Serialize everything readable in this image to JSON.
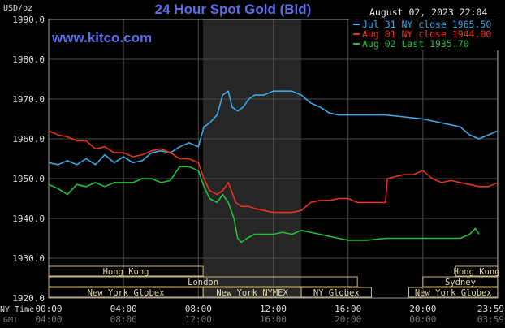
{
  "header": {
    "title": "24 Hour Spot Gold (Bid)",
    "unit": "USD/oz",
    "timestamp": "August 02, 2023 22:04",
    "watermark": "www.kitco.com"
  },
  "legend": [
    {
      "label": "Jul 31 NY close 1965.50",
      "color": "#3aa8e8"
    },
    {
      "label": "Aug 01 NY close 1944.00",
      "color": "#e8321e"
    },
    {
      "label": "Aug 02 Last 1935.70",
      "color": "#22c03a"
    }
  ],
  "axis_labels": {
    "ny_time": "NY Time",
    "gmt": "GMT"
  },
  "sessions": [
    {
      "label": "Hong Kong",
      "row": 0,
      "start": 0,
      "end": 8.25
    },
    {
      "label": "Hong Kong",
      "row": 0,
      "start": 21.75,
      "end": 24
    },
    {
      "label": "London",
      "row": 1,
      "start": 0,
      "end": 16.5
    },
    {
      "label": "Sydney",
      "row": 1,
      "start": 20,
      "end": 24
    },
    {
      "label": "New York Globex",
      "row": 2,
      "start": 0,
      "end": 8.25
    },
    {
      "label": "New York NYMEX",
      "row": 2,
      "start": 8.25,
      "end": 13.5
    },
    {
      "label": "NY Globex",
      "row": 2,
      "start": 13.5,
      "end": 17.25
    },
    {
      "label": "New York Globex",
      "row": 2,
      "start": 19.25,
      "end": 24
    }
  ],
  "chart_data": {
    "type": "line",
    "title": "24 Hour Spot Gold (Bid)",
    "ylabel": "USD/oz",
    "ylim": [
      1920,
      1990
    ],
    "yticks": [
      1920,
      1930,
      1940,
      1950,
      1960,
      1970,
      1980,
      1990
    ],
    "ytick_labels": [
      "1920.0",
      "1930.0",
      "1940.0",
      "1950.0",
      "1960.0",
      "1970.0",
      "1980.0",
      "1990.0"
    ],
    "xlim": [
      0,
      24
    ],
    "xticks": [
      0,
      4,
      8,
      12,
      16,
      20,
      23.983
    ],
    "xtick_labels_ny": [
      "00:00",
      "04:00",
      "08:00",
      "12:00",
      "16:00",
      "20:00",
      "23:59"
    ],
    "xtick_labels_gmt": [
      "04:00",
      "08:00",
      "12:00",
      "16:00",
      "20:00",
      "00:00",
      "03:59"
    ],
    "highlight_range": [
      8.25,
      13.5
    ],
    "grid": true,
    "legend_position": "top-right",
    "series": [
      {
        "name": "Jul 31 NY close 1965.50",
        "color": "#3aa8e8",
        "x": [
          0,
          0.5,
          1,
          1.5,
          2,
          2.5,
          3,
          3.5,
          4,
          4.5,
          5,
          5.5,
          6,
          6.5,
          7,
          7.5,
          8,
          8.3,
          8.6,
          9,
          9.3,
          9.6,
          9.8,
          10.1,
          10.4,
          10.7,
          11,
          11.5,
          12,
          12.5,
          13,
          13.5,
          14,
          14.5,
          15,
          15.5,
          16,
          17,
          18,
          19,
          20,
          21,
          21.5,
          22,
          22.5,
          23,
          23.5,
          24
        ],
        "y": [
          1954,
          1953.5,
          1954.5,
          1953.5,
          1955,
          1953.5,
          1956,
          1954,
          1955.5,
          1954,
          1954.5,
          1956.5,
          1957,
          1956.5,
          1958,
          1959,
          1958,
          1963,
          1964,
          1966,
          1971,
          1972,
          1968,
          1967,
          1968,
          1970,
          1971,
          1971,
          1972,
          1972,
          1972,
          1971,
          1969,
          1968,
          1966.5,
          1966,
          1966,
          1966,
          1966,
          1965.5,
          1965,
          1964,
          1963.5,
          1963,
          1961,
          1960,
          1961,
          1962
        ]
      },
      {
        "name": "Aug 01 NY close 1944.00",
        "color": "#e8321e",
        "x": [
          0,
          0.5,
          1,
          1.5,
          2,
          2.5,
          3,
          3.5,
          4,
          4.5,
          5,
          5.5,
          6,
          6.5,
          7,
          7.5,
          8,
          8.3,
          8.6,
          9,
          9.3,
          9.6,
          10,
          10.3,
          10.7,
          11,
          11.5,
          12,
          12.5,
          13,
          13.5,
          14,
          14.5,
          15,
          15.5,
          16,
          16.5,
          17,
          18,
          18.1,
          18.5,
          19,
          19.5,
          20,
          20.5,
          21,
          21.5,
          22,
          22.5,
          23,
          23.5,
          24
        ],
        "y": [
          1962,
          1961,
          1960.5,
          1959.5,
          1959.5,
          1957.5,
          1958,
          1956.5,
          1956.5,
          1955.5,
          1956,
          1957,
          1957.5,
          1956.5,
          1955,
          1955,
          1954,
          1950,
          1947,
          1946,
          1947,
          1949,
          1944,
          1943,
          1943,
          1942.5,
          1942,
          1941.5,
          1941.5,
          1941.5,
          1942,
          1944,
          1944.5,
          1944.5,
          1945,
          1945,
          1944,
          1944,
          1944,
          1950,
          1950.5,
          1951,
          1951,
          1952,
          1950,
          1949,
          1949.5,
          1949,
          1948.5,
          1948,
          1948,
          1949
        ]
      },
      {
        "name": "Aug 02 Last 1935.70",
        "color": "#22c03a",
        "x": [
          0,
          0.5,
          1,
          1.5,
          2,
          2.5,
          3,
          3.5,
          4,
          4.5,
          5,
          5.5,
          6,
          6.5,
          7,
          7.5,
          8,
          8.3,
          8.6,
          9,
          9.3,
          9.6,
          9.9,
          10.1,
          10.3,
          10.6,
          11,
          11.5,
          12,
          12.5,
          13,
          13.5,
          14,
          14.5,
          15,
          15.5,
          16,
          17,
          18,
          19,
          20,
          21,
          21.5,
          22,
          22.5,
          22.8,
          23
        ],
        "y": [
          1948.5,
          1947.5,
          1946,
          1948.5,
          1948,
          1949,
          1948,
          1949,
          1949,
          1949,
          1950,
          1950,
          1949,
          1949.5,
          1953,
          1953,
          1952,
          1948,
          1945,
          1944,
          1946,
          1944,
          1940,
          1935,
          1934,
          1935,
          1936,
          1936,
          1936,
          1936.5,
          1936,
          1937,
          1936.5,
          1936,
          1935.5,
          1935,
          1934.5,
          1934.5,
          1935,
          1935,
          1935,
          1935,
          1935,
          1935,
          1936,
          1937.5,
          1936
        ]
      }
    ]
  }
}
